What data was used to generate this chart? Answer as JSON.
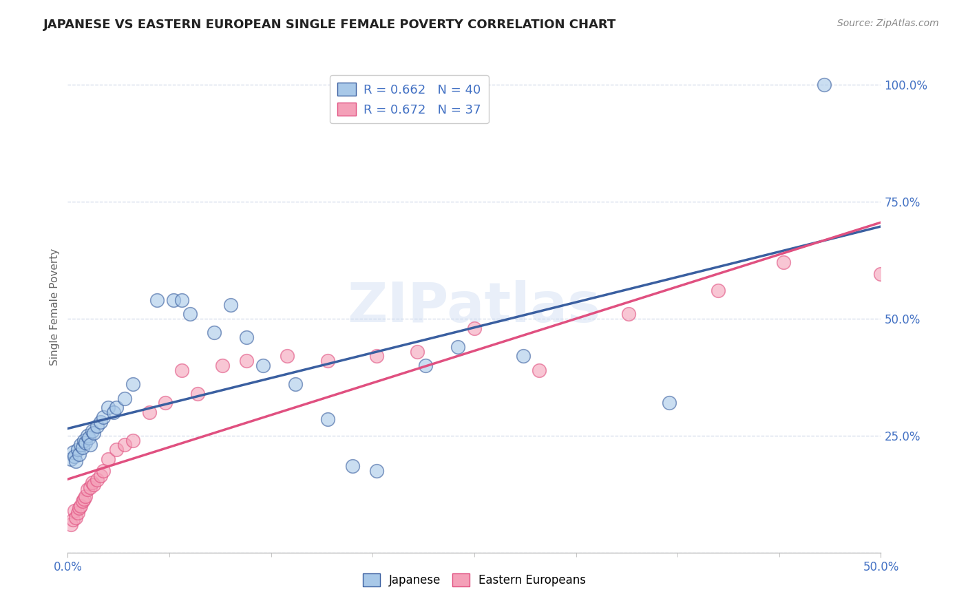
{
  "title": "JAPANESE VS EASTERN EUROPEAN SINGLE FEMALE POVERTY CORRELATION CHART",
  "source": "Source: ZipAtlas.com",
  "ylabel": "Single Female Poverty",
  "xlim": [
    0.0,
    0.5
  ],
  "ylim": [
    0.0,
    1.05
  ],
  "ytick_vals": [
    0.0,
    0.25,
    0.5,
    0.75,
    1.0
  ],
  "ytick_labels": [
    "",
    "25.0%",
    "50.0%",
    "75.0%",
    "100.0%"
  ],
  "xtick_vals": [
    0.0,
    0.5
  ],
  "xtick_labels": [
    "0.0%",
    "50.0%"
  ],
  "legend_r1": "R = 0.662",
  "legend_n1": "N = 40",
  "legend_r2": "R = 0.672",
  "legend_n2": "N = 37",
  "color_japanese": "#a8c8e8",
  "color_eastern": "#f4a0b8",
  "watermark": "ZIPatlas",
  "japanese_x": [
    0.002,
    0.003,
    0.004,
    0.005,
    0.006,
    0.007,
    0.008,
    0.009,
    0.01,
    0.011,
    0.012,
    0.013,
    0.014,
    0.015,
    0.016,
    0.018,
    0.02,
    0.022,
    0.025,
    0.028,
    0.03,
    0.035,
    0.04,
    0.055,
    0.065,
    0.07,
    0.075,
    0.09,
    0.1,
    0.11,
    0.12,
    0.14,
    0.16,
    0.175,
    0.19,
    0.22,
    0.24,
    0.28,
    0.37,
    0.465
  ],
  "japanese_y": [
    0.2,
    0.215,
    0.205,
    0.195,
    0.22,
    0.21,
    0.23,
    0.225,
    0.24,
    0.235,
    0.25,
    0.245,
    0.23,
    0.26,
    0.255,
    0.27,
    0.28,
    0.29,
    0.31,
    0.3,
    0.31,
    0.33,
    0.36,
    0.54,
    0.54,
    0.54,
    0.51,
    0.47,
    0.53,
    0.46,
    0.4,
    0.36,
    0.285,
    0.185,
    0.175,
    0.4,
    0.44,
    0.42,
    0.32,
    1.0
  ],
  "eastern_x": [
    0.002,
    0.003,
    0.004,
    0.005,
    0.006,
    0.007,
    0.008,
    0.009,
    0.01,
    0.011,
    0.012,
    0.014,
    0.015,
    0.016,
    0.018,
    0.02,
    0.022,
    0.025,
    0.03,
    0.035,
    0.04,
    0.05,
    0.06,
    0.07,
    0.08,
    0.095,
    0.11,
    0.135,
    0.16,
    0.19,
    0.215,
    0.25,
    0.29,
    0.345,
    0.4,
    0.44,
    0.5
  ],
  "eastern_y": [
    0.06,
    0.07,
    0.09,
    0.075,
    0.085,
    0.095,
    0.1,
    0.11,
    0.115,
    0.12,
    0.135,
    0.14,
    0.15,
    0.145,
    0.155,
    0.165,
    0.175,
    0.2,
    0.22,
    0.23,
    0.24,
    0.3,
    0.32,
    0.39,
    0.34,
    0.4,
    0.41,
    0.42,
    0.41,
    0.42,
    0.43,
    0.48,
    0.39,
    0.51,
    0.56,
    0.62,
    0.595
  ],
  "line_color_japanese": "#3a5fa0",
  "line_color_eastern": "#e05080",
  "background_color": "#ffffff",
  "grid_color": "#d0d8e8",
  "title_color": "#222222",
  "axis_color": "#4472c4",
  "title_fontsize": 13,
  "label_fontsize": 11,
  "tick_fontsize": 12,
  "source_fontsize": 10
}
